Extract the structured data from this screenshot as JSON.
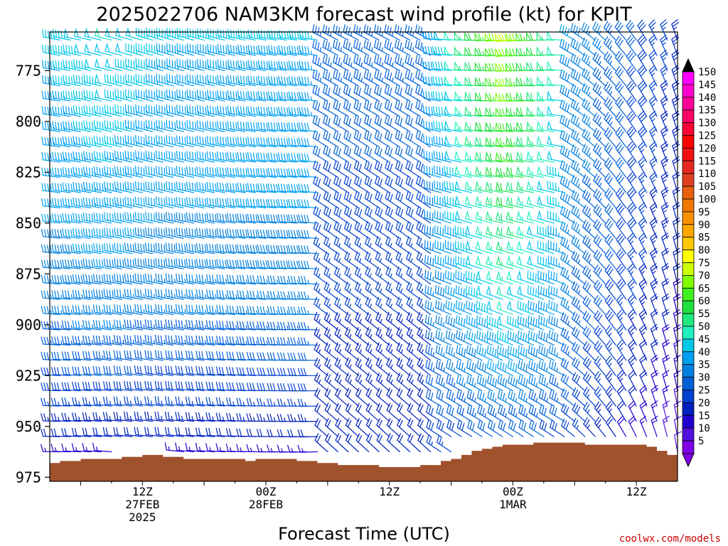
{
  "chart_data": {
    "type": "wind-barb profile",
    "title": "2025022706 NAM3KM forecast wind profile (kt) for KPIT",
    "xlabel": "Forecast Time (UTC)",
    "ylabel": "",
    "credit": "coolwx.com/models",
    "y_axis": {
      "ticks": [
        775,
        800,
        825,
        850,
        875,
        900,
        925,
        950,
        975
      ],
      "range": [
        756,
        977
      ],
      "inverted": true,
      "unit": "hPa"
    },
    "x_axis": {
      "range_hours": [
        -3,
        58
      ],
      "tick_labels": [
        {
          "hour": 6,
          "lines": [
            "12Z",
            "27FEB",
            "2025"
          ]
        },
        {
          "hour": 18,
          "lines": [
            "00Z",
            "28FEB"
          ]
        },
        {
          "hour": 30,
          "lines": [
            "12Z"
          ]
        },
        {
          "hour": 42,
          "lines": [
            "00Z",
            "1MAR"
          ]
        },
        {
          "hour": 54,
          "lines": [
            "12Z"
          ]
        }
      ]
    },
    "colorbar": {
      "labels": [
        150,
        145,
        140,
        135,
        130,
        125,
        120,
        115,
        110,
        105,
        100,
        95,
        90,
        85,
        80,
        75,
        70,
        65,
        60,
        55,
        50,
        45,
        40,
        35,
        30,
        25,
        20,
        15,
        10,
        5
      ],
      "colors": [
        "#ff00ff",
        "#ff00cc",
        "#ff0099",
        "#ff0066",
        "#ff0033",
        "#ff0000",
        "#f01010",
        "#e82820",
        "#e04020",
        "#e86010",
        "#f07800",
        "#f89000",
        "#ffa800",
        "#ffc800",
        "#ffff00",
        "#ccff00",
        "#80ff00",
        "#40f020",
        "#20e040",
        "#20e880",
        "#20f0c0",
        "#00c8e8",
        "#00a0f0",
        "#0080e0",
        "#0060d8",
        "#0040d0",
        "#0020c0",
        "#2000d0",
        "#5010e0",
        "#8000e8"
      ],
      "arrow_top": "#000000",
      "arrow_bottom": "#8000e8"
    },
    "terrain": {
      "color": "#a0522d",
      "pressure_by_hour": [
        [
          -3,
          968
        ],
        [
          -2,
          967
        ],
        [
          0,
          966
        ],
        [
          4,
          965
        ],
        [
          6,
          964
        ],
        [
          8,
          965
        ],
        [
          10,
          966
        ],
        [
          12,
          966
        ],
        [
          14,
          966
        ],
        [
          16,
          967
        ],
        [
          17,
          966
        ],
        [
          19,
          966
        ],
        [
          21,
          967
        ],
        [
          23,
          968
        ],
        [
          25,
          969
        ],
        [
          27,
          969
        ],
        [
          29,
          970
        ],
        [
          31,
          970
        ],
        [
          33,
          969
        ],
        [
          35,
          967
        ],
        [
          36,
          966
        ],
        [
          37,
          964
        ],
        [
          38,
          962
        ],
        [
          39,
          961
        ],
        [
          40,
          960
        ],
        [
          41,
          959
        ],
        [
          42,
          959
        ],
        [
          43,
          959
        ],
        [
          44,
          958
        ],
        [
          45,
          958
        ],
        [
          47,
          958
        ],
        [
          48,
          958
        ],
        [
          49,
          959
        ],
        [
          51,
          959
        ],
        [
          53,
          959
        ],
        [
          55,
          960
        ],
        [
          56,
          962
        ],
        [
          57,
          964
        ],
        [
          58,
          966
        ]
      ]
    },
    "wind_regime": [
      {
        "from_hour": -3,
        "to_hour": 24,
        "direction": "W to WNW",
        "speed_kt": "30-45"
      },
      {
        "from_hour": 24,
        "to_hour": 35,
        "direction": "NW",
        "speed_kt": "15-35"
      },
      {
        "from_hour": 35,
        "to_hour": 48,
        "direction": "W",
        "speed_kt": "40-65"
      },
      {
        "from_hour": 48,
        "to_hour": 58,
        "direction": "NW to N",
        "speed_kt": "15-40"
      }
    ]
  }
}
